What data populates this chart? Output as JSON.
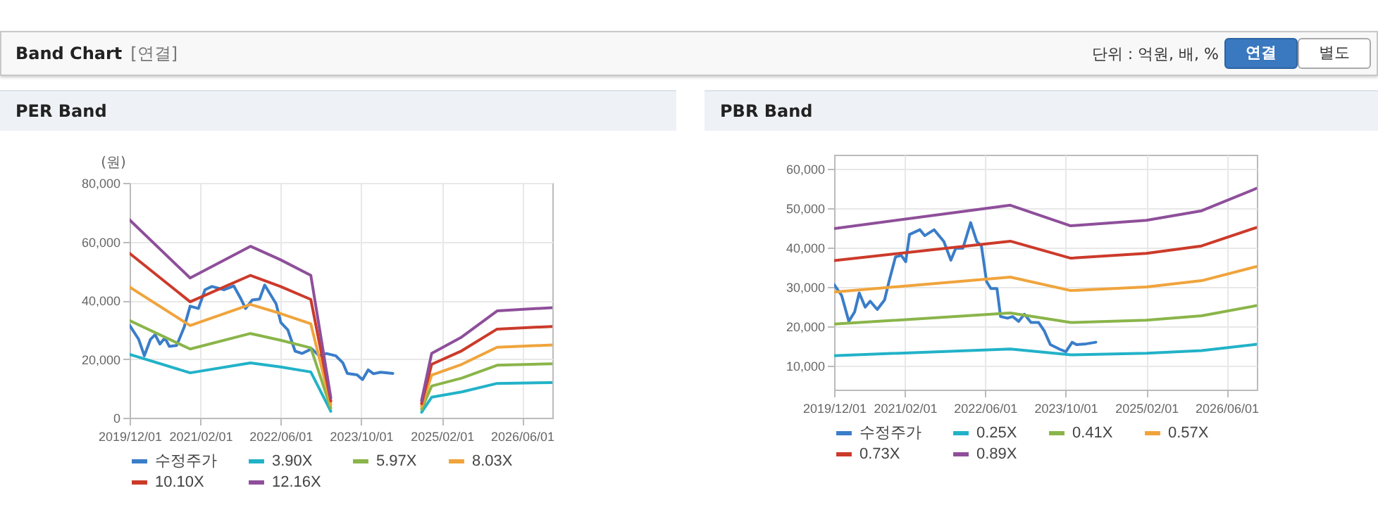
{
  "chart_data": [
    {
      "type": "other",
      "title": "Band Chart",
      "annotations": [
        "[연결]",
        "단위 : 억원, 배, %",
        "연결",
        "별도"
      ]
    },
    {
      "type": "line",
      "title": "PER Band",
      "ylabel": "(원)",
      "xlim": [
        "2019-12-01",
        "2026-12-01"
      ],
      "ylim": [
        0,
        80000
      ],
      "yticks": [
        0,
        {
          "value": 20000,
          "label": "20,000"
        },
        {
          "value": 40000,
          "label": "40,000"
        },
        {
          "value": 60000,
          "label": "60,000"
        },
        {
          "value": 80000,
          "label": "80,000"
        }
      ],
      "xticks": [
        {
          "value": "2019-12-01",
          "label": "2019/12/01"
        },
        {
          "value": "2021-02-01",
          "label": "2021/02/01"
        },
        {
          "value": "2022-06-01",
          "label": "2022/06/01"
        },
        {
          "value": "2023-10-01",
          "label": "2023/10/01"
        },
        {
          "value": "2025-02-01",
          "label": "2025/02/01"
        },
        {
          "value": "2026-06-01",
          "label": "2026/06/01"
        }
      ],
      "grid": true,
      "legend": "bottom",
      "x": [
        "2019-12-01",
        "2020-12-01",
        "2021-12-01",
        "2022-06-01",
        "2022-12-01",
        "2023-04-01",
        "2024-01-01",
        "2024-10-01",
        "2024-12-01",
        "2025-06-01",
        "2026-01-01",
        "2026-12-01"
      ],
      "series": [
        {
          "name": "수정주가",
          "color": "#3a7dc9",
          "x": [
            "2019-12-01",
            "2020-01-25",
            "2020-02-28",
            "2020-04-05",
            "2020-05-03",
            "2020-06-01",
            "2020-07-01",
            "2020-07-28",
            "2020-09-10",
            "2020-10-25",
            "2020-12-01",
            "2021-01-20",
            "2021-03-01",
            "2021-04-12",
            "2021-06-25",
            "2021-08-22",
            "2021-10-05",
            "2021-11-01",
            "2021-12-12",
            "2022-01-25",
            "2022-02-25",
            "2022-05-05",
            "2022-06-03",
            "2022-07-15",
            "2022-08-28",
            "2022-10-10",
            "2022-12-07",
            "2023-01-20",
            "2023-03-05",
            "2023-05-01",
            "2023-06-13",
            "2023-07-10",
            "2023-09-07",
            "2023-10-10",
            "2023-11-13",
            "2023-12-15",
            "2024-01-28",
            "2024-04-10"
          ],
          "values": [
            31500,
            26700,
            21100,
            26700,
            28300,
            25100,
            27200,
            24300,
            24600,
            30700,
            38000,
            37200,
            43600,
            44700,
            43600,
            44900,
            40400,
            37200,
            40100,
            40400,
            45200,
            38800,
            32400,
            29900,
            22700,
            21900,
            23500,
            21100,
            21900,
            21100,
            18700,
            15100,
            14600,
            13000,
            16300,
            15000,
            15500,
            15100
          ]
        },
        {
          "name": "3.90X",
          "color": "#22b2c8",
          "values": [
            21600,
            15300,
            18700,
            17300,
            15600,
            2200,
            null,
            1900,
            7000,
            8800,
            11700,
            12000
          ]
        },
        {
          "name": "5.97X",
          "color": "#8ab54a",
          "values": [
            33100,
            23400,
            28700,
            26400,
            23800,
            3300,
            null,
            2900,
            10800,
            13500,
            17900,
            18400
          ]
        },
        {
          "name": "8.03X",
          "color": "#f0a43c",
          "values": [
            44500,
            31400,
            38600,
            35500,
            32000,
            4500,
            null,
            3900,
            14500,
            18200,
            24000,
            24800
          ]
        },
        {
          "name": "10.10X",
          "color": "#cc3a2a",
          "values": [
            56000,
            39500,
            48500,
            44700,
            40300,
            5700,
            null,
            4800,
            18200,
            22800,
            30200,
            31100
          ]
        },
        {
          "name": "12.16X",
          "color": "#8e4f9a",
          "values": [
            67400,
            47600,
            58400,
            53800,
            48500,
            6800,
            null,
            5800,
            21900,
            27500,
            36400,
            37500
          ]
        }
      ]
    },
    {
      "type": "line",
      "title": "PBR Band",
      "xlim": [
        "2019-12-01",
        "2026-12-01"
      ],
      "ylim": [
        4000,
        63500
      ],
      "yticks": [
        {
          "value": 10000,
          "label": "10,000"
        },
        {
          "value": 20000,
          "label": "20,000"
        },
        {
          "value": 30000,
          "label": "30,000"
        },
        {
          "value": 40000,
          "label": "40,000"
        },
        {
          "value": 50000,
          "label": "50,000"
        },
        {
          "value": 60000,
          "label": "60,000"
        }
      ],
      "xticks": [
        {
          "value": "2019-12-01",
          "label": "2019/12/01"
        },
        {
          "value": "2021-02-01",
          "label": "2021/02/01"
        },
        {
          "value": "2022-06-01",
          "label": "2022/06/01"
        },
        {
          "value": "2023-10-01",
          "label": "2023/10/01"
        },
        {
          "value": "2025-02-01",
          "label": "2025/02/01"
        },
        {
          "value": "2026-06-01",
          "label": "2026/06/01"
        }
      ],
      "grid": true,
      "legend": "bottom",
      "x": [
        "2019-12-01",
        "2022-11-01",
        "2023-11-01",
        "2025-02-01",
        "2026-01-01",
        "2026-12-01"
      ],
      "series": [
        {
          "name": "수정주가",
          "color": "#3a7dc9",
          "x": [
            "2019-12-01",
            "2020-01-15",
            "2020-02-28",
            "2020-04-03",
            "2020-05-01",
            "2020-06-06",
            "2020-07-06",
            "2020-08-18",
            "2020-10-01",
            "2020-10-28",
            "2020-12-06",
            "2021-01-10",
            "2021-02-06",
            "2021-03-01",
            "2021-05-03",
            "2021-06-01",
            "2021-07-28",
            "2021-09-25",
            "2021-11-06",
            "2021-12-06",
            "2022-01-18",
            "2022-03-06",
            "2022-04-12",
            "2022-05-10",
            "2022-06-10",
            "2022-07-06",
            "2022-08-12",
            "2022-09-03",
            "2022-10-15",
            "2022-11-15",
            "2022-12-21",
            "2023-01-25",
            "2023-03-06",
            "2023-04-21",
            "2023-05-25",
            "2023-07-01",
            "2023-08-28",
            "2023-10-03",
            "2023-11-10",
            "2023-12-06",
            "2024-02-03",
            "2024-04-01"
          ],
          "values": [
            30600,
            27900,
            21300,
            23700,
            28500,
            24900,
            26400,
            24300,
            26700,
            31400,
            37600,
            38000,
            36400,
            43300,
            44500,
            43000,
            44500,
            41500,
            36800,
            39800,
            39800,
            46300,
            41500,
            40400,
            31400,
            29600,
            29600,
            22500,
            22100,
            22500,
            21300,
            23100,
            21000,
            21000,
            18900,
            15400,
            14200,
            13600,
            16000,
            15400,
            15600,
            16000
          ]
        },
        {
          "name": "0.25X",
          "color": "#22b2c8",
          "values": [
            12600,
            14300,
            12800,
            13200,
            13900,
            15500
          ]
        },
        {
          "name": "0.41X",
          "color": "#8ab54a",
          "values": [
            20600,
            23400,
            21000,
            21600,
            22700,
            25300
          ]
        },
        {
          "name": "0.57X",
          "color": "#f0a43c",
          "values": [
            28700,
            32500,
            29100,
            30000,
            31600,
            35200
          ]
        },
        {
          "name": "0.73X",
          "color": "#cc3a2a",
          "values": [
            36700,
            41600,
            37300,
            38500,
            40400,
            45100
          ]
        },
        {
          "name": "0.89X",
          "color": "#8e4f9a",
          "values": [
            44800,
            50700,
            45500,
            46900,
            49300,
            55000
          ]
        }
      ]
    }
  ]
}
